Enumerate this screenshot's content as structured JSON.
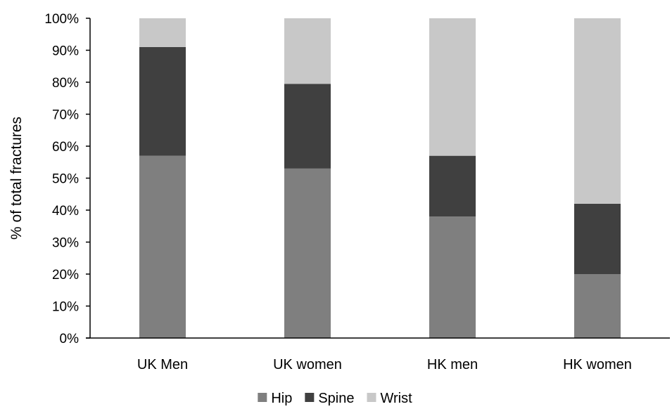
{
  "chart_data": {
    "type": "bar",
    "stacked": true,
    "percent_stacked": true,
    "title": "",
    "xlabel": "",
    "ylabel": "% of total fractures",
    "ylim": [
      0,
      100
    ],
    "y_ticks": [
      "0%",
      "10%",
      "20%",
      "30%",
      "40%",
      "50%",
      "60%",
      "70%",
      "80%",
      "90%",
      "100%"
    ],
    "categories": [
      "UK Men",
      "UK women",
      "HK men",
      "HK women"
    ],
    "series": [
      {
        "name": "Hip",
        "color": "#7f7f7f",
        "values": [
          57,
          53,
          38,
          20
        ]
      },
      {
        "name": "Spine",
        "color": "#404040",
        "values": [
          34,
          26.5,
          19,
          22
        ]
      },
      {
        "name": "Wrist",
        "color": "#c8c8c8",
        "values": [
          9,
          20.5,
          43,
          58
        ]
      }
    ],
    "grid": false,
    "legend_position": "bottom"
  }
}
